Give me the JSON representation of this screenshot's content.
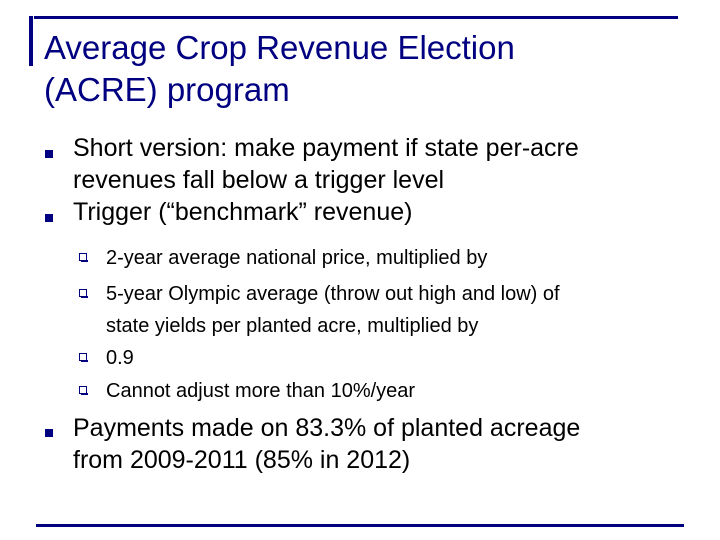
{
  "title": {
    "line1": "Average Crop Revenue Election",
    "line2": "(ACRE) program"
  },
  "bullets": [
    {
      "level": 1,
      "lines": [
        "Short version: make payment if state per-acre",
        "revenues fall below a trigger level"
      ]
    },
    {
      "level": 1,
      "lines": [
        "Trigger (“benchmark” revenue)"
      ]
    },
    {
      "level": 2,
      "lines": [
        "2-year average national price, multiplied by"
      ]
    },
    {
      "level": 2,
      "lines": [
        "5-year Olympic average (throw out high and low) of",
        "state yields per planted acre, multiplied by"
      ]
    },
    {
      "level": 2,
      "lines": [
        "0.9"
      ]
    },
    {
      "level": 2,
      "lines": [
        "Cannot adjust more than 10%/year"
      ]
    },
    {
      "level": 1,
      "lines": [
        "Payments made on 83.3% of planted acreage",
        "from 2009-2011 (85% in 2012)"
      ]
    }
  ],
  "colors": {
    "accent": "#000080",
    "text": "#000000",
    "background": "#ffffff"
  },
  "icons": {
    "level1_marker": "filled-square-bullet-icon",
    "level2_marker": "hollow-square-bullet-icon"
  }
}
